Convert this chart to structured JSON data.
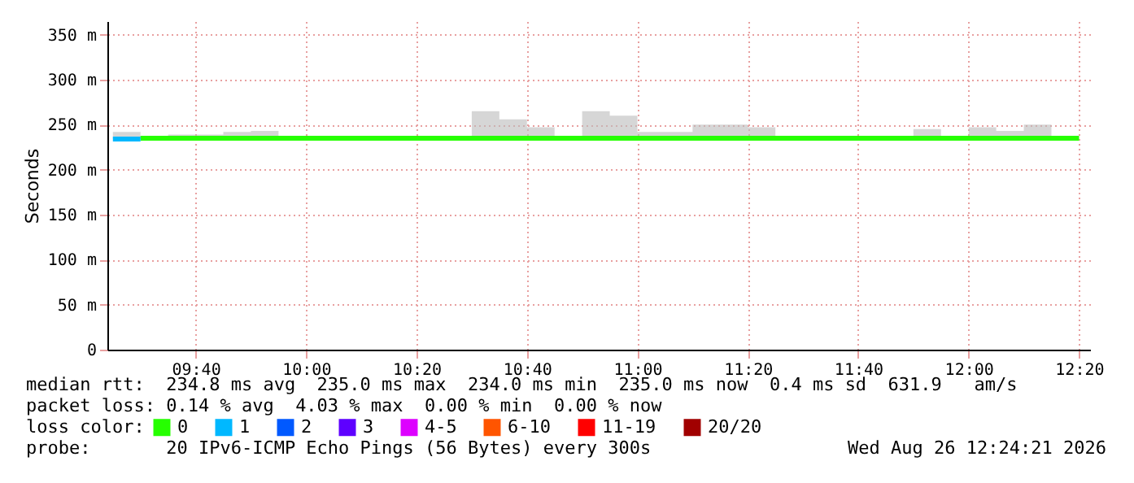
{
  "chart_data": {
    "type": "step",
    "ylabel": "Seconds",
    "legend_title": "loss color:",
    "legend": "bottom",
    "grid": true,
    "xlim": [
      "2026-08-26T09:24",
      "2026-08-26T12:22"
    ],
    "xticks": [
      {
        "value": "2026-08-26T09:40",
        "label": "09:40"
      },
      {
        "value": "2026-08-26T10:00",
        "label": "10:00"
      },
      {
        "value": "2026-08-26T10:20",
        "label": "10:20"
      },
      {
        "value": "2026-08-26T10:40",
        "label": "10:40"
      },
      {
        "value": "2026-08-26T11:00",
        "label": "11:00"
      },
      {
        "value": "2026-08-26T11:20",
        "label": "11:20"
      },
      {
        "value": "2026-08-26T11:40",
        "label": "11:40"
      },
      {
        "value": "2026-08-26T12:00",
        "label": "12:00"
      },
      {
        "value": "2026-08-26T12:20",
        "label": "12:20"
      }
    ],
    "ylim": [
      0,
      365
    ],
    "yticks": [
      0,
      {
        "value": 50,
        "label": "50 m"
      },
      {
        "value": 100,
        "label": "100 m"
      },
      {
        "value": 150,
        "label": "150 m"
      },
      {
        "value": 200,
        "label": "200 m"
      },
      {
        "value": 250,
        "label": "250 m"
      },
      {
        "value": 300,
        "label": "300 m"
      },
      {
        "value": 350,
        "label": "350 m"
      }
    ],
    "series": [
      {
        "name": "0",
        "color": "#26ff00",
        "x": [
          "2026-08-26T09:30",
          "2026-08-26T09:35",
          "2026-08-26T09:40",
          "2026-08-26T09:45",
          "2026-08-26T09:50",
          "2026-08-26T09:55",
          "2026-08-26T10:00",
          "2026-08-26T10:05",
          "2026-08-26T10:10",
          "2026-08-26T10:15",
          "2026-08-26T10:20",
          "2026-08-26T10:25",
          "2026-08-26T10:30",
          "2026-08-26T10:35",
          "2026-08-26T10:40",
          "2026-08-26T10:45",
          "2026-08-26T10:50",
          "2026-08-26T10:55",
          "2026-08-26T11:00",
          "2026-08-26T11:05",
          "2026-08-26T11:10",
          "2026-08-26T11:15",
          "2026-08-26T11:20",
          "2026-08-26T11:25",
          "2026-08-26T11:30",
          "2026-08-26T11:35",
          "2026-08-26T11:40",
          "2026-08-26T11:45",
          "2026-08-26T11:50",
          "2026-08-26T11:55",
          "2026-08-26T12:00",
          "2026-08-26T12:05",
          "2026-08-26T12:10",
          "2026-08-26T12:15",
          "2026-08-26T12:20"
        ],
        "values": [
          235,
          235,
          235,
          235,
          235,
          235,
          235,
          235,
          235,
          235,
          235,
          235,
          235,
          235,
          235,
          235,
          235,
          235,
          235,
          235,
          235,
          235,
          235,
          235,
          235,
          235,
          235,
          235,
          235,
          235,
          235,
          235,
          235,
          235,
          235
        ],
        "lower": [
          234,
          234,
          234,
          234,
          234,
          234,
          234,
          234,
          234,
          234,
          234,
          234,
          234,
          234,
          234,
          234,
          234,
          234,
          234,
          234,
          234,
          234,
          234,
          234,
          234,
          234,
          234,
          234,
          234,
          234,
          234,
          234,
          234,
          234,
          234
        ],
        "upper": [
          237,
          239,
          239,
          242,
          243,
          236,
          236,
          236,
          236,
          236,
          236,
          236,
          265,
          256,
          247,
          236,
          265,
          260,
          242,
          242,
          250,
          250,
          247,
          236,
          236,
          236,
          236,
          236,
          245,
          236,
          247,
          243,
          250,
          236,
          236
        ]
      },
      {
        "name": "1",
        "color": "#00b8ff",
        "x": [
          "2026-08-26T09:25",
          "2026-08-26T09:30"
        ],
        "values": [
          234,
          234
        ],
        "lower": [
          234,
          234
        ],
        "upper": [
          242,
          242
        ]
      },
      {
        "name": "2",
        "color": "#0059ff"
      },
      {
        "name": "3",
        "color": "#5e00ff"
      },
      {
        "name": "4-5",
        "color": "#dd00ff"
      },
      {
        "name": "6-10",
        "color": "#ff5500"
      },
      {
        "name": "11-19",
        "color": "#ff0000"
      },
      {
        "name": "20/20",
        "color": "#a10000"
      }
    ],
    "annotations": [
      "median rtt:  234.8 ms avg  235.0 ms max  234.0 ms min  235.0 ms now  0.4 ms sd  631.9   am/s",
      "packet loss: 0.14 % avg  4.03 % max  0.00 % min  0.00 % now",
      "probe:       20 IPv6-ICMP Echo Pings (56 Bytes) every 300s",
      "Wed Aug 26 12:24:21 2026"
    ]
  }
}
